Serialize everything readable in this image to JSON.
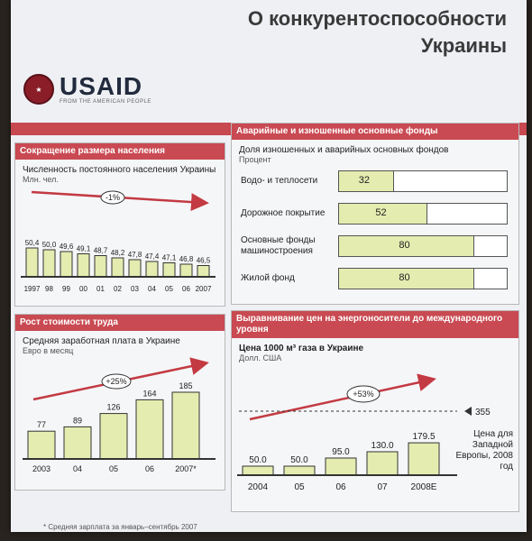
{
  "slide": {
    "title_line1": "О конкурентоспособности",
    "title_line2": "Украины",
    "logo_name": "USAID",
    "logo_sub": "FROM THE AMERICAN PEOPLE",
    "footnote": "* Средняя зарплата за январь–сентябрь 2007"
  },
  "population": {
    "heading": "Сокращение размера населения",
    "subtitle": "Численность постоянного населения Украины",
    "unit": "Млн. чел.",
    "trend_label": "-1%",
    "chart_data": {
      "type": "bar",
      "categories": [
        "1997",
        "98",
        "99",
        "00",
        "01",
        "02",
        "03",
        "04",
        "05",
        "06",
        "2007"
      ],
      "values": [
        50.4,
        50.0,
        49.6,
        49.1,
        48.7,
        48.2,
        47.8,
        47.4,
        47.1,
        46.8,
        46.5
      ],
      "value_labels": [
        "50,4",
        "50,0",
        "49,6",
        "49,1",
        "48,7",
        "48,2",
        "47,8",
        "47,4",
        "47,1",
        "46,8",
        "46,5"
      ]
    }
  },
  "wages": {
    "heading": "Рост стоимости труда",
    "subtitle": "Средняя заработная плата в Украине",
    "unit": "Евро в месяц",
    "trend_label": "+25%",
    "chart_data": {
      "type": "bar",
      "categories": [
        "2003",
        "04",
        "05",
        "06",
        "2007*"
      ],
      "values": [
        77,
        89,
        126,
        164,
        185
      ]
    }
  },
  "funds": {
    "heading": "Аварийные и изношенные основные фонды",
    "subtitle": "Доля изношенных и аварийных основных фондов",
    "unit": "Процент",
    "chart_data": {
      "type": "bar",
      "categories": [
        "Водо- и теплосети",
        "Дорожное покрытие",
        "Основные фонды машиностроения",
        "Жилой фонд"
      ],
      "values": [
        32,
        52,
        80,
        80
      ]
    }
  },
  "gas": {
    "heading": "Выравнивание цен на энергоносители до международного уровня",
    "subtitle": "Цена 1000 м³ газа в Украине",
    "unit": "Долл. США",
    "trend_label": "+53%",
    "reference_value": "355",
    "reference_label": "Цена для Западной Европы, 2008 год",
    "chart_data": {
      "type": "bar",
      "categories": [
        "2004",
        "05",
        "06",
        "07",
        "2008E"
      ],
      "values": [
        50.0,
        50.0,
        95.0,
        130.0,
        179.5
      ],
      "value_labels": [
        "50.0",
        "50.0",
        "95.0",
        "130.0",
        "179.5"
      ]
    }
  }
}
